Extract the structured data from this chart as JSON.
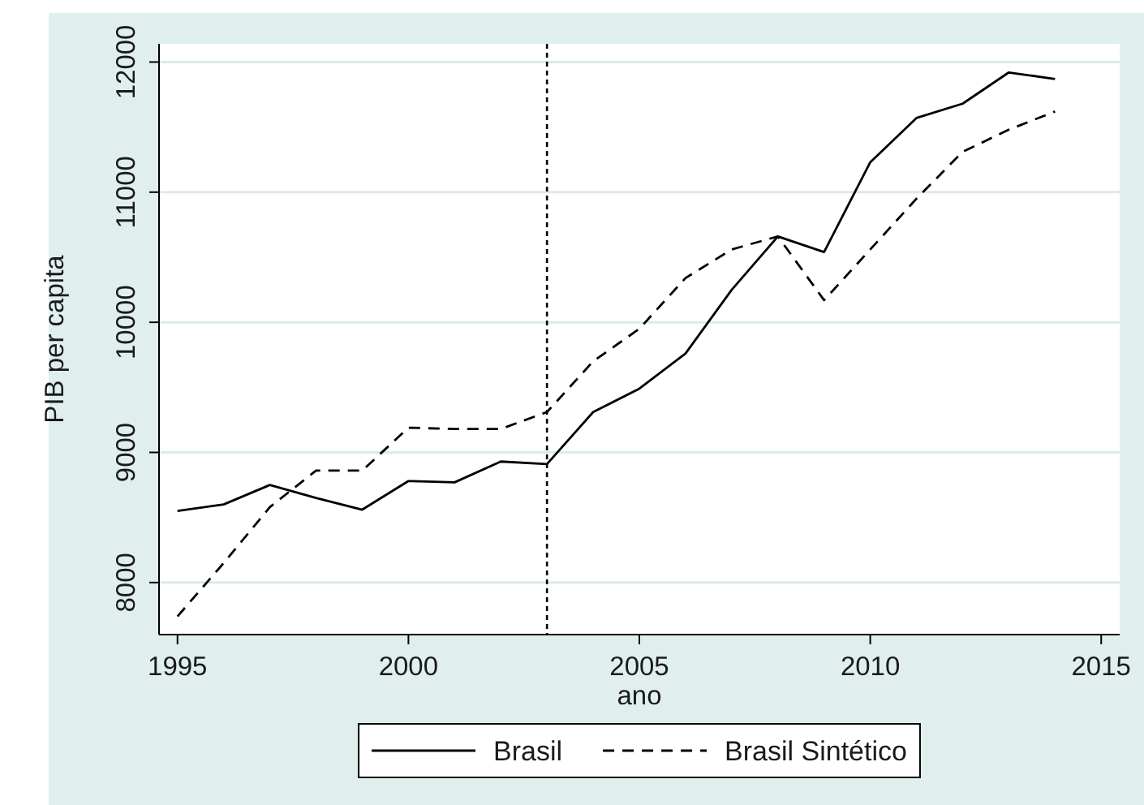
{
  "chart_data": {
    "type": "line",
    "xlabel": "ano",
    "ylabel": "PIB per capita",
    "x": [
      1995,
      1996,
      1997,
      1998,
      1999,
      2000,
      2001,
      2002,
      2003,
      2004,
      2005,
      2006,
      2007,
      2008,
      2009,
      2010,
      2011,
      2012,
      2013,
      2014
    ],
    "series": [
      {
        "name": "Brasil",
        "color": "#000000",
        "line_style": "solid",
        "values": [
          8550,
          8600,
          8750,
          8650,
          8560,
          8780,
          8770,
          8930,
          8910,
          9310,
          9490,
          9760,
          10250,
          10660,
          10540,
          11230,
          11570,
          11680,
          11920,
          11870
        ]
      },
      {
        "name": "Brasil Sintético",
        "color": "#000000",
        "line_style": "dashed",
        "values": [
          7740,
          8150,
          8580,
          8860,
          8860,
          9190,
          9180,
          9180,
          9310,
          9700,
          9950,
          10340,
          10560,
          10660,
          10170,
          10560,
          10950,
          11310,
          11480,
          11620
        ]
      }
    ],
    "xlim": [
      1994.6,
      2015.4
    ],
    "ylim": [
      7600,
      12140
    ],
    "xticks": [
      1995,
      2000,
      2005,
      2010,
      2015
    ],
    "yticks": [
      8000,
      9000,
      10000,
      11000,
      12000
    ],
    "grid": "y",
    "legend": "bottom",
    "ref_lines": [
      {
        "axis": "x",
        "value": 2003,
        "color": "#000000",
        "line_style": "dotted"
      }
    ]
  }
}
